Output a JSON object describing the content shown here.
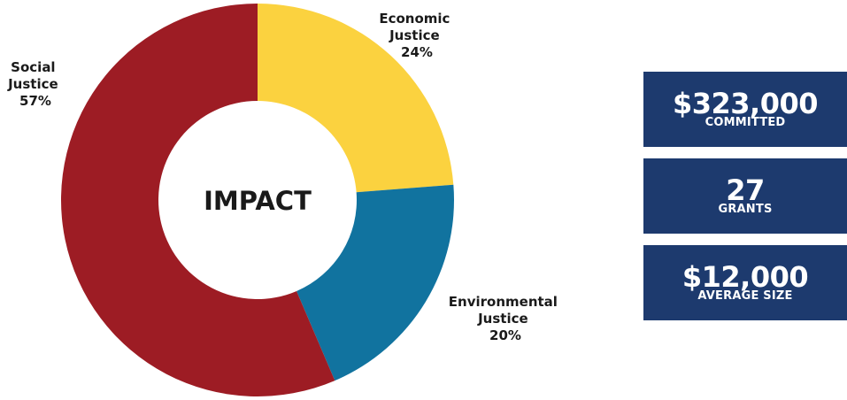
{
  "colors": {
    "social": "#9d1c24",
    "economic": "#fbd23f",
    "environmental": "#11739f",
    "stat_box": "#1d3a6e"
  },
  "chart_data": {
    "type": "pie",
    "donut": true,
    "center_label": "IMPACT",
    "slices": [
      {
        "name": "Economic Justice",
        "label_lines": [
          "Economic",
          "Justice"
        ],
        "value": 24,
        "value_label": "24%",
        "color": "#fbd23f"
      },
      {
        "name": "Environmental Justice",
        "label_lines": [
          "Environmental",
          "Justice"
        ],
        "value": 20,
        "value_label": "20%",
        "color": "#11739f"
      },
      {
        "name": "Social Justice",
        "label_lines": [
          "Social",
          "Justice"
        ],
        "value": 57,
        "value_label": "57%",
        "color": "#9d1c24"
      }
    ]
  },
  "stats": [
    {
      "value": "$323,000",
      "caption": "COMMITTED"
    },
    {
      "value": "27",
      "caption": "GRANTS"
    },
    {
      "value": "$12,000",
      "caption": "AVERAGE SIZE"
    }
  ]
}
